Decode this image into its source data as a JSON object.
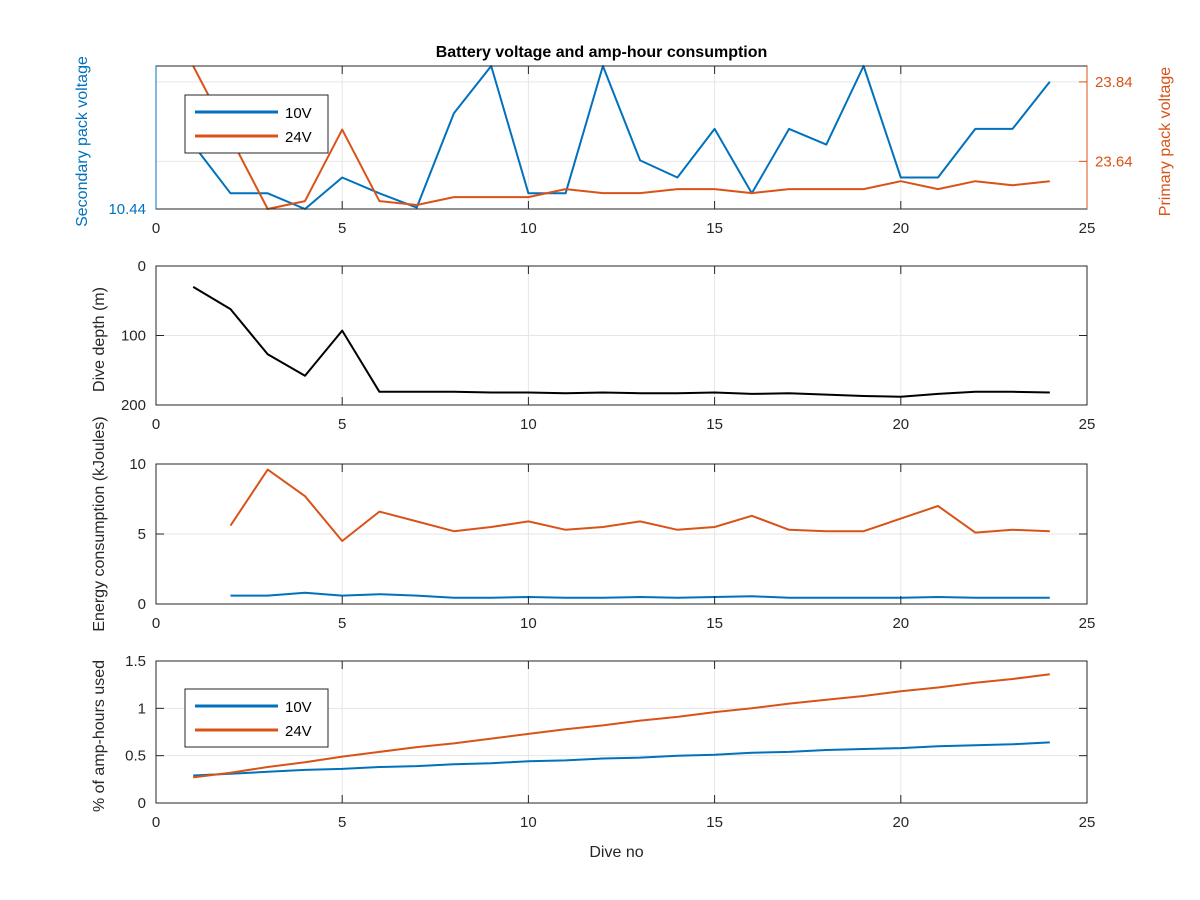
{
  "figure": {
    "background": "#ffffff",
    "colors": {
      "blue": "#0072bd",
      "orange": "#d95319",
      "black": "#000000",
      "grid": "#e6e6e6",
      "axis": "#262626"
    }
  },
  "chart_data": [
    {
      "type": "line",
      "title": "Battery voltage and amp-hour consumption",
      "xlabel": "",
      "ylabel": "Secondary pack voltage",
      "ylabel_right": "Primary pack voltage",
      "xlim": [
        0,
        25
      ],
      "xticks": [
        0,
        5,
        10,
        15,
        20,
        25
      ],
      "ylim": [
        10.44,
        10.54
      ],
      "yticks": [
        10.44
      ],
      "ytick_labels": [
        "10.44"
      ],
      "ylim_right": [
        23.52,
        23.88
      ],
      "yticks_right": [
        23.64,
        23.84
      ],
      "ytick_labels_right": [
        "23.64",
        "23.84"
      ],
      "grid": true,
      "legend": {
        "position": "top-left",
        "entries": [
          "10V",
          "24V"
        ]
      },
      "x": [
        1,
        2,
        3,
        4,
        5,
        6,
        7,
        8,
        9,
        10,
        11,
        12,
        13,
        14,
        15,
        16,
        17,
        18,
        19,
        20,
        21,
        22,
        23,
        24
      ],
      "series": [
        {
          "name": "10V",
          "axis": "left",
          "color": "#0072bd",
          "values": [
            10.485,
            10.451,
            10.451,
            10.44,
            10.462,
            10.451,
            10.441,
            10.507,
            10.54,
            10.451,
            10.451,
            10.54,
            10.474,
            10.462,
            10.496,
            10.451,
            10.496,
            10.485,
            10.54,
            10.462,
            10.462,
            10.496,
            10.496,
            10.529
          ]
        },
        {
          "name": "24V",
          "axis": "right",
          "color": "#d95319",
          "values": [
            23.88,
            23.7,
            23.52,
            23.54,
            23.72,
            23.54,
            23.53,
            23.55,
            23.55,
            23.55,
            23.57,
            23.56,
            23.56,
            23.57,
            23.57,
            23.56,
            23.57,
            23.57,
            23.57,
            23.59,
            23.57,
            23.59,
            23.58,
            23.59
          ]
        }
      ]
    },
    {
      "type": "line",
      "title": "",
      "xlabel": "",
      "ylabel": "Dive depth (m)",
      "xlim": [
        0,
        25
      ],
      "xticks": [
        0,
        5,
        10,
        15,
        20,
        25
      ],
      "ylim": [
        0,
        200
      ],
      "y_reversed": true,
      "yticks": [
        0,
        100,
        200
      ],
      "ytick_labels": [
        "0",
        "100",
        "200"
      ],
      "grid": true,
      "x": [
        1,
        2,
        3,
        4,
        5,
        6,
        7,
        8,
        9,
        10,
        11,
        12,
        13,
        14,
        15,
        16,
        17,
        18,
        19,
        20,
        21,
        22,
        23,
        24
      ],
      "series": [
        {
          "color": "#000000",
          "values": [
            30,
            62,
            127,
            158,
            93,
            181,
            181,
            181,
            182,
            182,
            183,
            182,
            183,
            183,
            182,
            184,
            183,
            185,
            187,
            188,
            184,
            181,
            181,
            182
          ]
        }
      ]
    },
    {
      "type": "line",
      "title": "",
      "xlabel": "",
      "ylabel": "Energy consumption (kJoules)",
      "xlim": [
        0,
        25
      ],
      "xticks": [
        0,
        5,
        10,
        15,
        20,
        25
      ],
      "ylim": [
        0,
        10
      ],
      "yticks": [
        0,
        5,
        10
      ],
      "ytick_labels": [
        "0",
        "5",
        "10"
      ],
      "grid": true,
      "x": [
        2,
        3,
        4,
        5,
        6,
        7,
        8,
        9,
        10,
        11,
        12,
        13,
        14,
        15,
        16,
        17,
        18,
        19,
        20,
        21,
        22,
        23,
        24
      ],
      "series": [
        {
          "color": "#0072bd",
          "values": [
            0.6,
            0.6,
            0.8,
            0.6,
            0.7,
            0.6,
            0.45,
            0.45,
            0.5,
            0.45,
            0.45,
            0.5,
            0.45,
            0.5,
            0.55,
            0.45,
            0.45,
            0.45,
            0.45,
            0.5,
            0.45,
            0.45,
            0.45
          ]
        },
        {
          "color": "#d95319",
          "values": [
            5.6,
            9.6,
            7.7,
            4.5,
            6.6,
            5.9,
            5.2,
            5.5,
            5.9,
            5.3,
            5.5,
            5.9,
            5.3,
            5.5,
            6.3,
            5.3,
            5.2,
            5.2,
            6.1,
            7.0,
            5.1,
            5.3,
            5.2
          ]
        }
      ]
    },
    {
      "type": "line",
      "title": "",
      "xlabel": "Dive no",
      "ylabel": "% of amp-hours used",
      "xlim": [
        0,
        25
      ],
      "xticks": [
        0,
        5,
        10,
        15,
        20,
        25
      ],
      "ylim": [
        0,
        1.5
      ],
      "yticks": [
        0,
        0.5,
        1,
        1.5
      ],
      "ytick_labels": [
        "0",
        "0.5",
        "1",
        "1.5"
      ],
      "grid": true,
      "legend": {
        "position": "bottom-left",
        "entries": [
          "10V",
          "24V"
        ]
      },
      "x": [
        1,
        2,
        3,
        4,
        5,
        6,
        7,
        8,
        9,
        10,
        11,
        12,
        13,
        14,
        15,
        16,
        17,
        18,
        19,
        20,
        21,
        22,
        23,
        24
      ],
      "series": [
        {
          "name": "10V",
          "color": "#0072bd",
          "values": [
            0.29,
            0.31,
            0.33,
            0.35,
            0.36,
            0.38,
            0.39,
            0.41,
            0.42,
            0.44,
            0.45,
            0.47,
            0.48,
            0.5,
            0.51,
            0.53,
            0.54,
            0.56,
            0.57,
            0.58,
            0.6,
            0.61,
            0.62,
            0.64
          ]
        },
        {
          "name": "24V",
          "color": "#d95319",
          "values": [
            0.27,
            0.32,
            0.38,
            0.43,
            0.49,
            0.54,
            0.59,
            0.63,
            0.68,
            0.73,
            0.78,
            0.82,
            0.87,
            0.91,
            0.96,
            1.0,
            1.05,
            1.09,
            1.13,
            1.18,
            1.22,
            1.27,
            1.31,
            1.36
          ]
        }
      ]
    }
  ]
}
